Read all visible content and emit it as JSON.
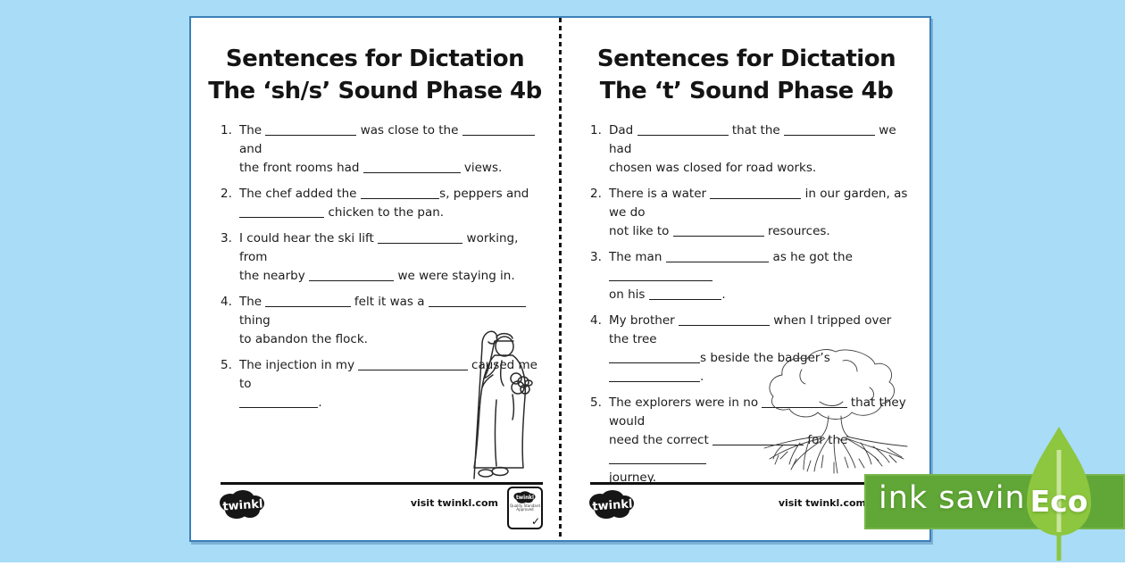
{
  "colors": {
    "background": "#a8dcf7",
    "page_border": "#3b80b8",
    "text": "#1c1c1c",
    "eco_band": "#61a737",
    "eco_leaf": "#8dc63f",
    "eco_stem": "#c9e59b"
  },
  "left_page": {
    "title_line1": "Sentences for Dictation",
    "title_line2": "The ‘sh/s’ Sound Phase 4b",
    "sentences": [
      {
        "num": "1.",
        "lines": [
          "The _______________ was close to the ____________ and",
          "the front rooms had ________________ views."
        ]
      },
      {
        "num": "2.",
        "lines": [
          "The chef added the _____________s, peppers and",
          "______________ chicken to the pan."
        ]
      },
      {
        "num": "3.",
        "lines": [
          "I could hear the ski lift ______________ working, from",
          "the nearby ______________ we were staying in."
        ]
      },
      {
        "num": "4.",
        "lines": [
          "The ______________ felt it was a ________________ thing",
          "to abandon the flock."
        ]
      },
      {
        "num": "5.",
        "lines": [
          "The injection in my __________________ caused me to",
          "_____________."
        ]
      }
    ],
    "footer": {
      "logo": "twinkl",
      "visit": "visit twinkl.com"
    },
    "illustration": "shepherd-with-lamb"
  },
  "right_page": {
    "title_line1": "Sentences for Dictation",
    "title_line2": "The ‘t’ Sound Phase 4b",
    "sentences": [
      {
        "num": "1.",
        "lines": [
          "Dad _______________ that the _______________ we had",
          "chosen was closed for road works."
        ]
      },
      {
        "num": "2.",
        "lines": [
          "There is a water _______________ in our garden, as we do",
          "not like to _______________ resources."
        ]
      },
      {
        "num": "3.",
        "lines": [
          "The man _________________ as he got the _________________",
          "on his ____________."
        ]
      },
      {
        "num": "4.",
        "lines": [
          "My brother _______________ when I tripped over the tree",
          "_______________s beside the badger’s _______________."
        ]
      },
      {
        "num": "5.",
        "lines": [
          "The explorers were in no ______________ that they would",
          "need the correct _______________ for the ________________",
          "journey."
        ]
      }
    ],
    "footer": {
      "logo": "twinkl",
      "visit": "visit twinkl.com"
    },
    "illustration": "tree-with-roots"
  },
  "quality_badge": {
    "logo": "twinkl",
    "caption": "Quality Standard Approved",
    "check": "✓"
  },
  "eco_badge": {
    "band_label": "ink saving",
    "leaf_label": "Eco"
  }
}
